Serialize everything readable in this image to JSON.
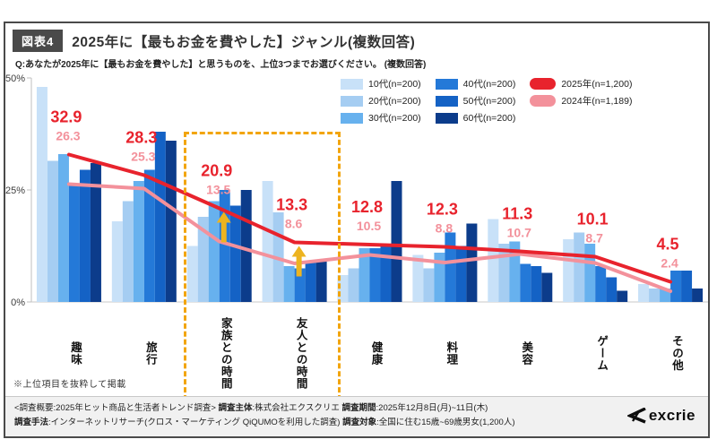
{
  "header": {
    "badge": "図表4",
    "title": "2025年に【最もお金を費やした】ジャンル(複数回答)",
    "question": "Q:あなたが2025年に【最もお金を費やした】と思うものを、上位3つまでお選びください。 (複数回答)"
  },
  "note": "※上位項目を抜粋して掲載",
  "legend": {
    "age_groups": [
      {
        "label": "10代(n=200)",
        "color": "#c8e1f8"
      },
      {
        "label": "20代(n=200)",
        "color": "#a5cdf2"
      },
      {
        "label": "30代(n=200)",
        "color": "#67b1ee"
      },
      {
        "label": "40代(n=200)",
        "color": "#2479d8"
      },
      {
        "label": "50代(n=200)",
        "color": "#1462c5"
      },
      {
        "label": "60代(n=200)",
        "color": "#0c3c8b"
      }
    ],
    "year_lines": [
      {
        "label": "2025年(n=1,200)",
        "color": "#e8232d"
      },
      {
        "label": "2024年(n=1,189)",
        "color": "#f3919b"
      }
    ]
  },
  "chart_data": {
    "type": "bar",
    "categories": [
      "趣味",
      "旅行",
      "家族との時間",
      "友人との時間",
      "健康",
      "料理",
      "美容",
      "ゲーム",
      "その他"
    ],
    "series": [
      {
        "name": "10代(n=200)",
        "color": "#c8e1f8",
        "values": [
          48,
          18,
          12.5,
          27,
          6,
          10.5,
          18.5,
          14,
          4
        ]
      },
      {
        "name": "20代(n=200)",
        "color": "#a5cdf2",
        "values": [
          31.5,
          22.5,
          19,
          20,
          7.5,
          7.5,
          13,
          15.5,
          3
        ]
      },
      {
        "name": "30代(n=200)",
        "color": "#67b1ee",
        "values": [
          33,
          27,
          22.5,
          8,
          12,
          11,
          13.5,
          13,
          3
        ]
      },
      {
        "name": "40代(n=200)",
        "color": "#2479d8",
        "values": [
          26,
          29.5,
          25,
          7.5,
          12,
          15.5,
          8.5,
          8,
          7
        ]
      },
      {
        "name": "50代(n=200)",
        "color": "#1462c5",
        "values": [
          29.5,
          38,
          21.5,
          9,
          13,
          12.5,
          8,
          5.5,
          7
        ]
      },
      {
        "name": "60代(n=200)",
        "color": "#0c3c8b",
        "values": [
          31,
          36,
          25,
          9,
          27,
          17.5,
          6.5,
          2.5,
          3
        ]
      }
    ],
    "line_series": [
      {
        "name": "2025年(n=1,200)",
        "color": "#e8232d",
        "values": [
          32.9,
          28.3,
          20.9,
          13.3,
          12.8,
          12.3,
          11.3,
          10.1,
          4.5
        ]
      },
      {
        "name": "2024年(n=1,189)",
        "color": "#f3919b",
        "values": [
          26.3,
          25.3,
          13.5,
          8.6,
          10.5,
          8.8,
          10.7,
          8.7,
          2.4
        ]
      }
    ],
    "ylim": [
      0,
      50
    ],
    "yticks": [
      "0%",
      "25%",
      "50%"
    ],
    "grid": false,
    "legend_position": "top-right",
    "highlight": {
      "category_indices": [
        2,
        3
      ],
      "box_color": "#f2a50e"
    },
    "arrows": {
      "category_indices": [
        2,
        3
      ],
      "color": "#edb420",
      "direction": "up"
    }
  },
  "footer": {
    "lines": [
      [
        {
          "text": "<調査概要:2025年ヒット商品と生活者トレンド調査> ",
          "bold": false
        },
        {
          "text": "調査主体",
          "bold": true
        },
        {
          "text": ":株式会社エクスクリエ  ",
          "bold": false
        },
        {
          "text": "調査期間",
          "bold": true
        },
        {
          "text": ":2025年12月8日(月)~11日(木)",
          "bold": false
        }
      ],
      [
        {
          "text": "調査手法",
          "bold": true
        },
        {
          "text": ":インターネットリサーチ(クロス・マーケティング QiQUMOを利用した調査)  ",
          "bold": false
        },
        {
          "text": "調査対象",
          "bold": true
        },
        {
          "text": ":全国に住む15歳~69歳男女(1,200人)",
          "bold": false
        }
      ]
    ],
    "logo": "excrie"
  }
}
